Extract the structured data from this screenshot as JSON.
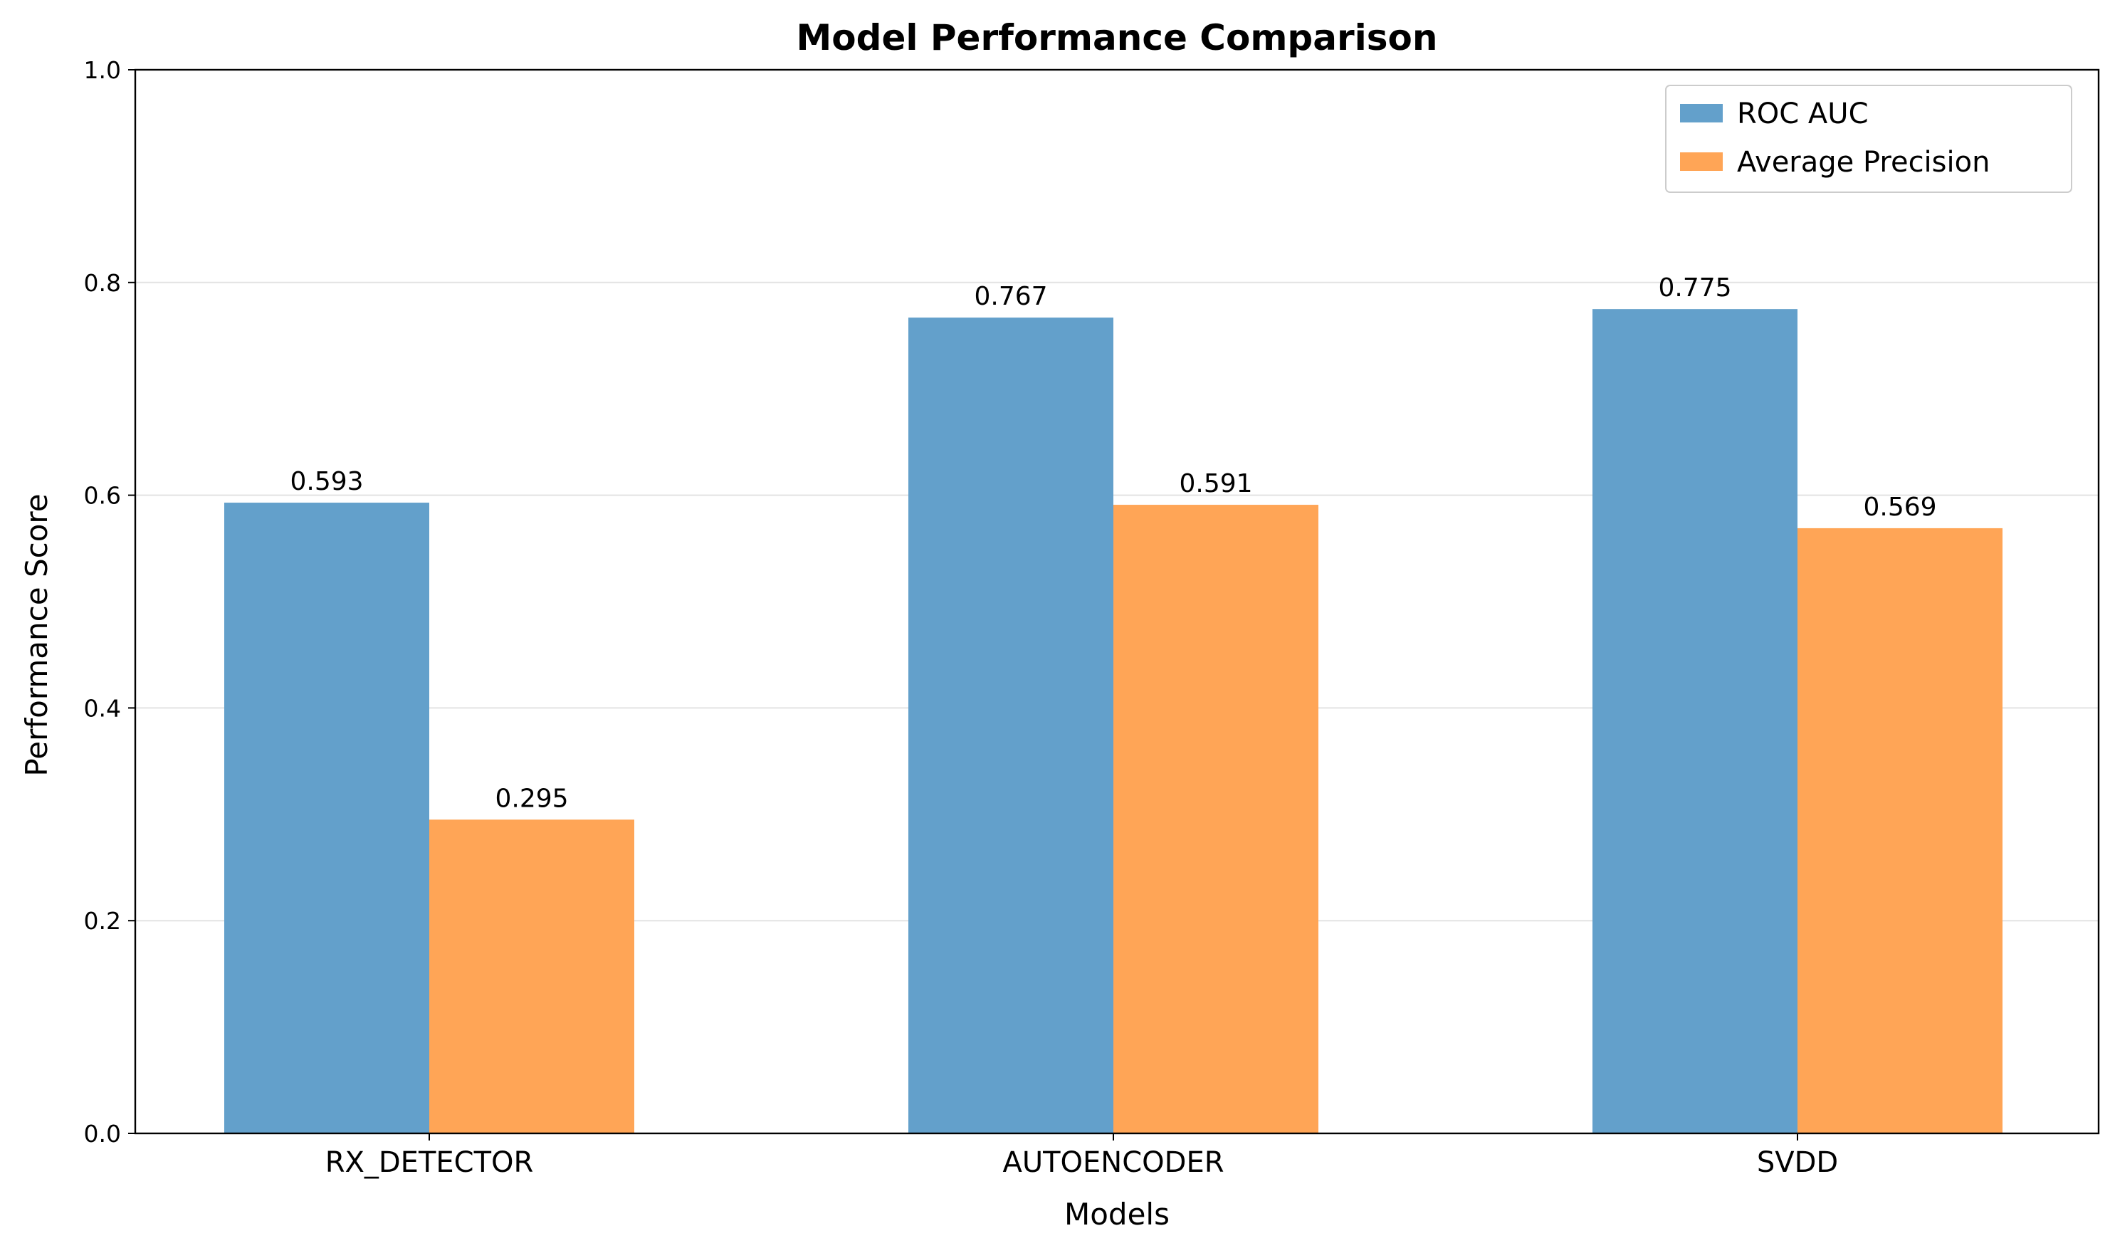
{
  "chart_data": {
    "type": "bar",
    "title": "Model Performance Comparison",
    "xlabel": "Models",
    "ylabel": "Performance Score",
    "categories": [
      "RX_DETECTOR",
      "AUTOENCODER",
      "SVDD"
    ],
    "series": [
      {
        "name": "ROC AUC",
        "values": [
          0.593,
          0.767,
          0.775
        ],
        "color": "#63a0cb"
      },
      {
        "name": "Average Precision",
        "values": [
          0.295,
          0.591,
          0.569
        ],
        "color": "#ffa556"
      }
    ],
    "data_labels": [
      [
        "0.593",
        "0.767",
        "0.775"
      ],
      [
        "0.295",
        "0.591",
        "0.569"
      ]
    ],
    "ylim": [
      0,
      1.0
    ],
    "yticks": [
      0.0,
      0.2,
      0.4,
      0.6,
      0.8,
      1.0
    ],
    "ytick_labels": [
      "0.0",
      "0.2",
      "0.4",
      "0.6",
      "0.8",
      "1.0"
    ],
    "grid": "horizontal",
    "legend_position": "top-right"
  }
}
